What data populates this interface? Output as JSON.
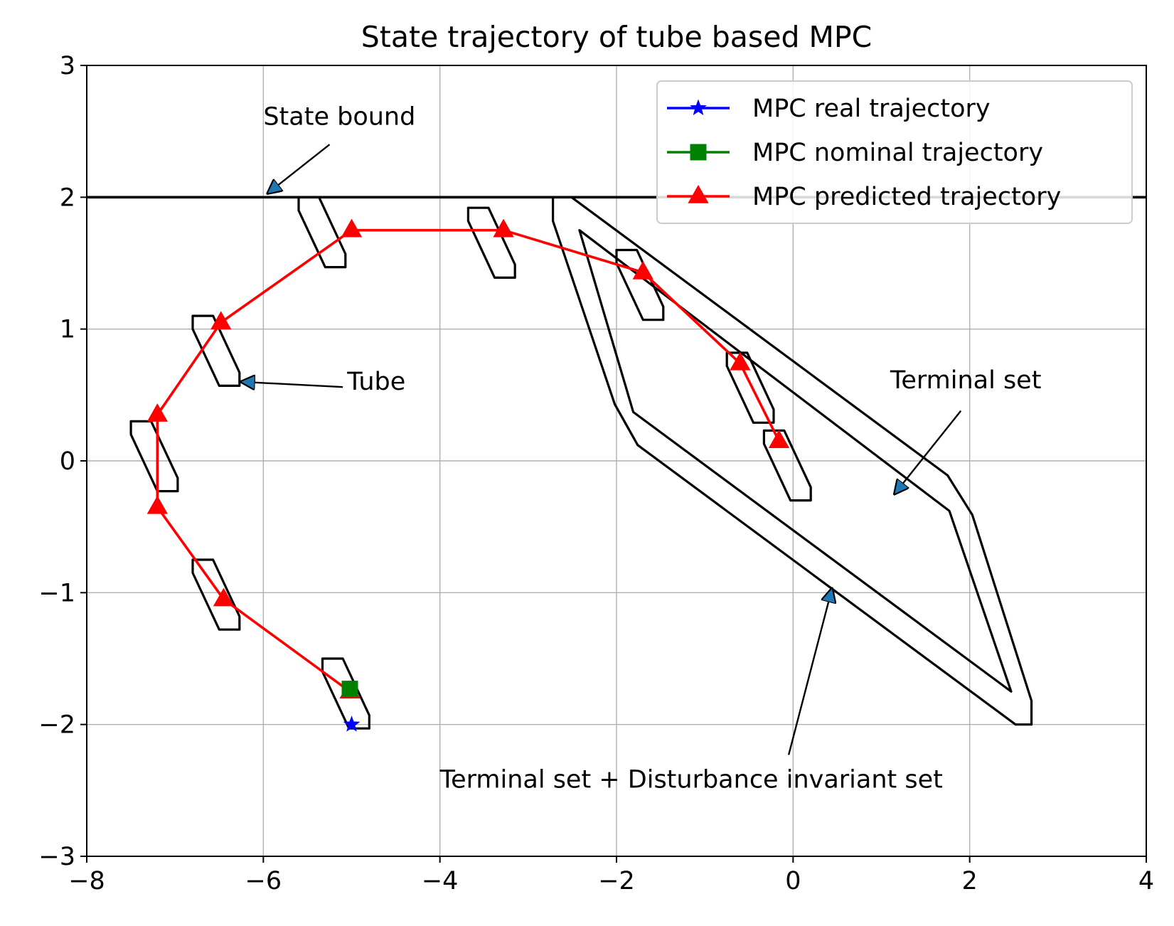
{
  "chart_data": {
    "type": "line",
    "title": "State trajectory of tube based MPC",
    "xlabel": "",
    "ylabel": "",
    "xlim": [
      -8,
      4
    ],
    "ylim": [
      -3,
      3
    ],
    "xticks": [
      -8,
      -6,
      -4,
      -2,
      0,
      2,
      4
    ],
    "yticks": [
      -3,
      -2,
      -1,
      0,
      1,
      2,
      3
    ],
    "xtick_labels": [
      "−8",
      "−6",
      "−4",
      "−2",
      "0",
      "2",
      "4"
    ],
    "ytick_labels": [
      "−3",
      "−2",
      "−1",
      "0",
      "1",
      "2",
      "3"
    ],
    "grid": true,
    "state_bound": 2,
    "series": [
      {
        "name": "MPC real trajectory",
        "color": "#0000ff",
        "marker": "star",
        "x": [
          -5.0
        ],
        "y": [
          -2.0
        ]
      },
      {
        "name": "MPC nominal trajectory",
        "color": "#008000",
        "marker": "square",
        "x": [
          -5.02
        ],
        "y": [
          -1.73
        ]
      },
      {
        "name": "MPC predicted trajectory",
        "color": "#ff0000",
        "marker": "triangle",
        "x": [
          -5.02,
          -6.45,
          -7.2,
          -7.2,
          -6.48,
          -5.0,
          -3.28,
          -1.7,
          -0.6,
          -0.16
        ],
        "y": [
          -1.75,
          -1.05,
          -0.35,
          0.35,
          1.05,
          1.75,
          1.75,
          1.43,
          0.74,
          0.15
        ]
      }
    ],
    "tube_offsets": [
      [
        -0.3,
        0.25
      ],
      [
        -0.3,
        0.15
      ],
      [
        0.0,
        -0.28
      ],
      [
        0.23,
        -0.28
      ],
      [
        0.23,
        -0.18
      ],
      [
        -0.07,
        0.25
      ]
    ],
    "tube_centers": [
      [
        -5.03,
        -1.75
      ],
      [
        -6.5,
        -1.0
      ],
      [
        -7.2,
        0.05
      ],
      [
        -6.5,
        0.85
      ],
      [
        -5.3,
        1.75
      ],
      [
        -3.38,
        1.67
      ],
      [
        -1.7,
        1.35
      ],
      [
        -0.45,
        0.57
      ],
      [
        -0.03,
        -0.02
      ]
    ],
    "terminal_set": [
      [
        -2.42,
        1.75
      ],
      [
        1.77,
        -0.38
      ],
      [
        2.47,
        -1.75
      ],
      [
        -1.81,
        0.37
      ]
    ],
    "terminal_plus_disturbance_set": [
      [
        -2.72,
        2.0
      ],
      [
        -2.51,
        2.0
      ],
      [
        1.75,
        -0.11
      ],
      [
        2.03,
        -0.41
      ],
      [
        2.7,
        -1.82
      ],
      [
        2.7,
        -2.0
      ],
      [
        2.52,
        -2.0
      ],
      [
        -1.76,
        0.12
      ],
      [
        -2.02,
        0.43
      ],
      [
        -2.72,
        1.82
      ]
    ],
    "annotations": [
      {
        "text": "State bound",
        "text_xy": [
          -6.0,
          2.55
        ],
        "arrow_from": [
          -5.25,
          2.4
        ],
        "arrow_to": [
          -5.95,
          2.03
        ]
      },
      {
        "text": "Tube",
        "text_xy": [
          -5.05,
          0.54
        ],
        "arrow_from": [
          -5.1,
          0.56
        ],
        "arrow_to": [
          -6.25,
          0.6
        ]
      },
      {
        "text": "Terminal set",
        "text_xy": [
          1.1,
          0.55
        ],
        "arrow_from": [
          1.9,
          0.38
        ],
        "arrow_to": [
          1.15,
          -0.25
        ]
      },
      {
        "text": "Terminal set + Disturbance invariant set",
        "text_xy": [
          -4.0,
          -2.48
        ],
        "arrow_from": [
          -0.05,
          -2.23
        ],
        "arrow_to": [
          0.44,
          -0.97
        ]
      }
    ],
    "legend": {
      "position": "top-right",
      "entries": [
        "MPC real trajectory",
        "MPC nominal trajectory",
        "MPC predicted trajectory"
      ]
    }
  }
}
